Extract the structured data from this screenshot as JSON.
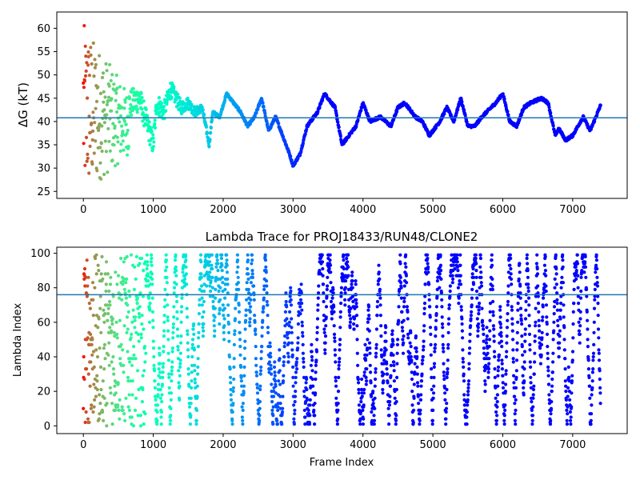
{
  "chart_data": [
    {
      "type": "scatter",
      "title": "",
      "xlabel": "",
      "ylabel": "ΔG (kT)",
      "xlim": [
        -380,
        7780
      ],
      "ylim": [
        23.5,
        63.5
      ],
      "xticks": [
        0,
        1000,
        2000,
        3000,
        4000,
        5000,
        6000,
        7000
      ],
      "xtick_labels": [
        "0",
        "1000",
        "2000",
        "3000",
        "4000",
        "5000",
        "6000",
        "7000"
      ],
      "yticks": [
        25,
        30,
        35,
        40,
        45,
        50,
        55,
        60
      ],
      "ytick_labels": [
        "25",
        "30",
        "35",
        "40",
        "45",
        "50",
        "55",
        "60"
      ],
      "hline": 40.8,
      "hline_color": "#1f77b4",
      "colormap": "rainbow",
      "n_frames": 7400,
      "grid": false,
      "legend": "none",
      "trace_keypoints": {
        "x": [
          600,
          800,
          1000,
          1050,
          1150,
          1250,
          1400,
          1500,
          1600,
          1700,
          1800,
          1850,
          1950,
          2050,
          2150,
          2250,
          2350,
          2450,
          2550,
          2650,
          2750,
          2850,
          2950,
          3000,
          3100,
          3200,
          3350,
          3450,
          3600,
          3700,
          3750,
          3900,
          4000,
          4100,
          4250,
          4400,
          4500,
          4600,
          4750,
          4850,
          4950,
          5100,
          5200,
          5300,
          5400,
          5500,
          5600,
          5700,
          5900,
          6000,
          6100,
          6200,
          6300,
          6400,
          6550,
          6650,
          6750,
          6800,
          6900,
          7000,
          7150,
          7250,
          7400
        ],
        "y": [
          43,
          45,
          35,
          44,
          42,
          47,
          43,
          44,
          42,
          43,
          35,
          42,
          41,
          46,
          44,
          42,
          39,
          41,
          45,
          38,
          41,
          37,
          33,
          30.5,
          33,
          39,
          42,
          46,
          43,
          35,
          36,
          39,
          44,
          40,
          41,
          39,
          43,
          44,
          41,
          40,
          37,
          40,
          43,
          40,
          45,
          39,
          39,
          41,
          44,
          46,
          40,
          39,
          43,
          44,
          45,
          44,
          37,
          38.5,
          36,
          37,
          41,
          38,
          43.5
        ]
      },
      "early_scatter_range": [
        24,
        61
      ]
    },
    {
      "type": "scatter",
      "title": "Lambda Trace for PROJ18433/RUN48/CLONE2",
      "xlabel": "Frame Index",
      "ylabel": "Lambda Index",
      "xlim": [
        -380,
        7780
      ],
      "ylim": [
        -4.5,
        103.5
      ],
      "xticks": [
        0,
        1000,
        2000,
        3000,
        4000,
        5000,
        6000,
        7000
      ],
      "xtick_labels": [
        "0",
        "1000",
        "2000",
        "3000",
        "4000",
        "5000",
        "6000",
        "7000"
      ],
      "yticks": [
        0,
        20,
        40,
        60,
        80,
        100
      ],
      "ytick_labels": [
        "0",
        "20",
        "40",
        "60",
        "80",
        "100"
      ],
      "hline": 76,
      "hline_color": "#1f77b4",
      "colormap": "rainbow",
      "n_frames": 7400,
      "value_range": [
        0,
        99
      ],
      "grid": false,
      "legend": "none"
    }
  ]
}
